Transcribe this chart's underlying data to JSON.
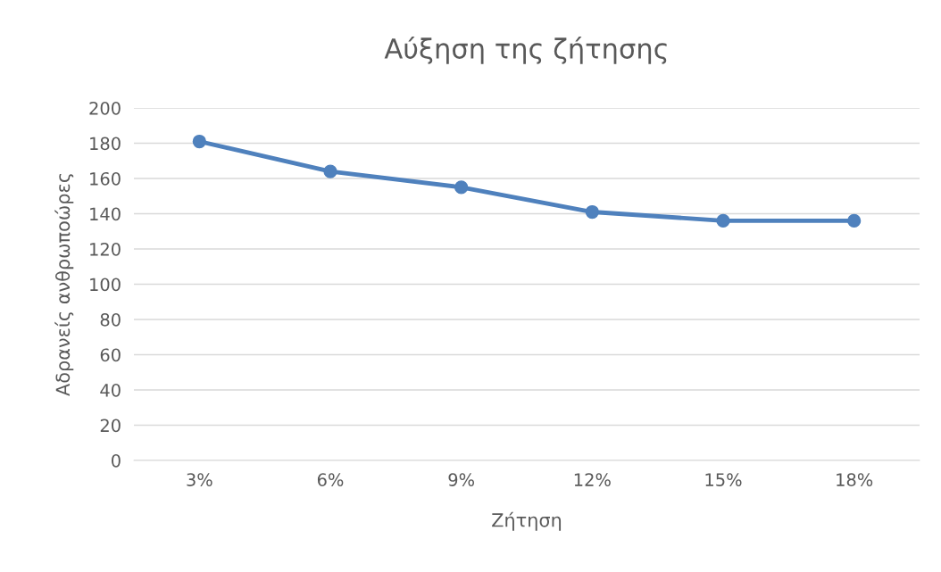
{
  "chart_data": {
    "type": "line",
    "title": "Αύξηση της ζήτησης",
    "xlabel": "Ζήτηση",
    "ylabel": "Αδρανείς ανθρωποώρες",
    "categories": [
      "3%",
      "6%",
      "9%",
      "12%",
      "15%",
      "18%"
    ],
    "series": [
      {
        "color": "#4f81bd",
        "values": [
          181,
          164,
          155,
          141,
          136,
          136
        ]
      }
    ],
    "ylim": [
      0,
      200
    ],
    "yticks": [
      0,
      20,
      40,
      60,
      80,
      100,
      120,
      140,
      160,
      180,
      200
    ],
    "grid": "y",
    "marker": "circle",
    "line_style": "solid"
  }
}
